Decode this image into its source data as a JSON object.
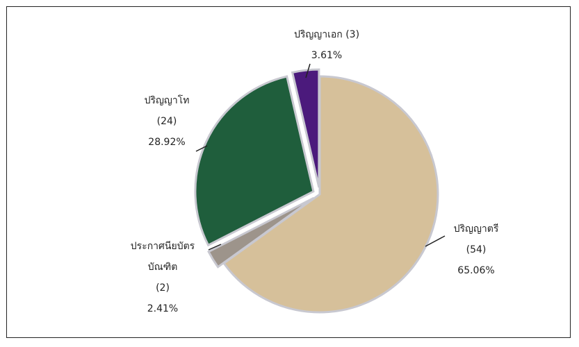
{
  "chart_data": {
    "type": "pie",
    "categories": [
      "ปริญญาตรี",
      "ประกาศนียบัตรบัณฑิต",
      "ปริญญาโท",
      "ปริญญาเอก"
    ],
    "values": [
      65.06,
      2.41,
      28.92,
      3.61
    ],
    "value_labels": [
      "65.06%",
      "2.41%",
      "28.92%",
      "3.61%"
    ],
    "counts": [
      54,
      2,
      24,
      3
    ],
    "count_labels": [
      "(54)",
      "(2)",
      "(24)",
      "(3)"
    ],
    "colors": [
      "#d6c09a",
      "#9d948b",
      "#1f5e3c",
      "#4b1a7c"
    ]
  }
}
